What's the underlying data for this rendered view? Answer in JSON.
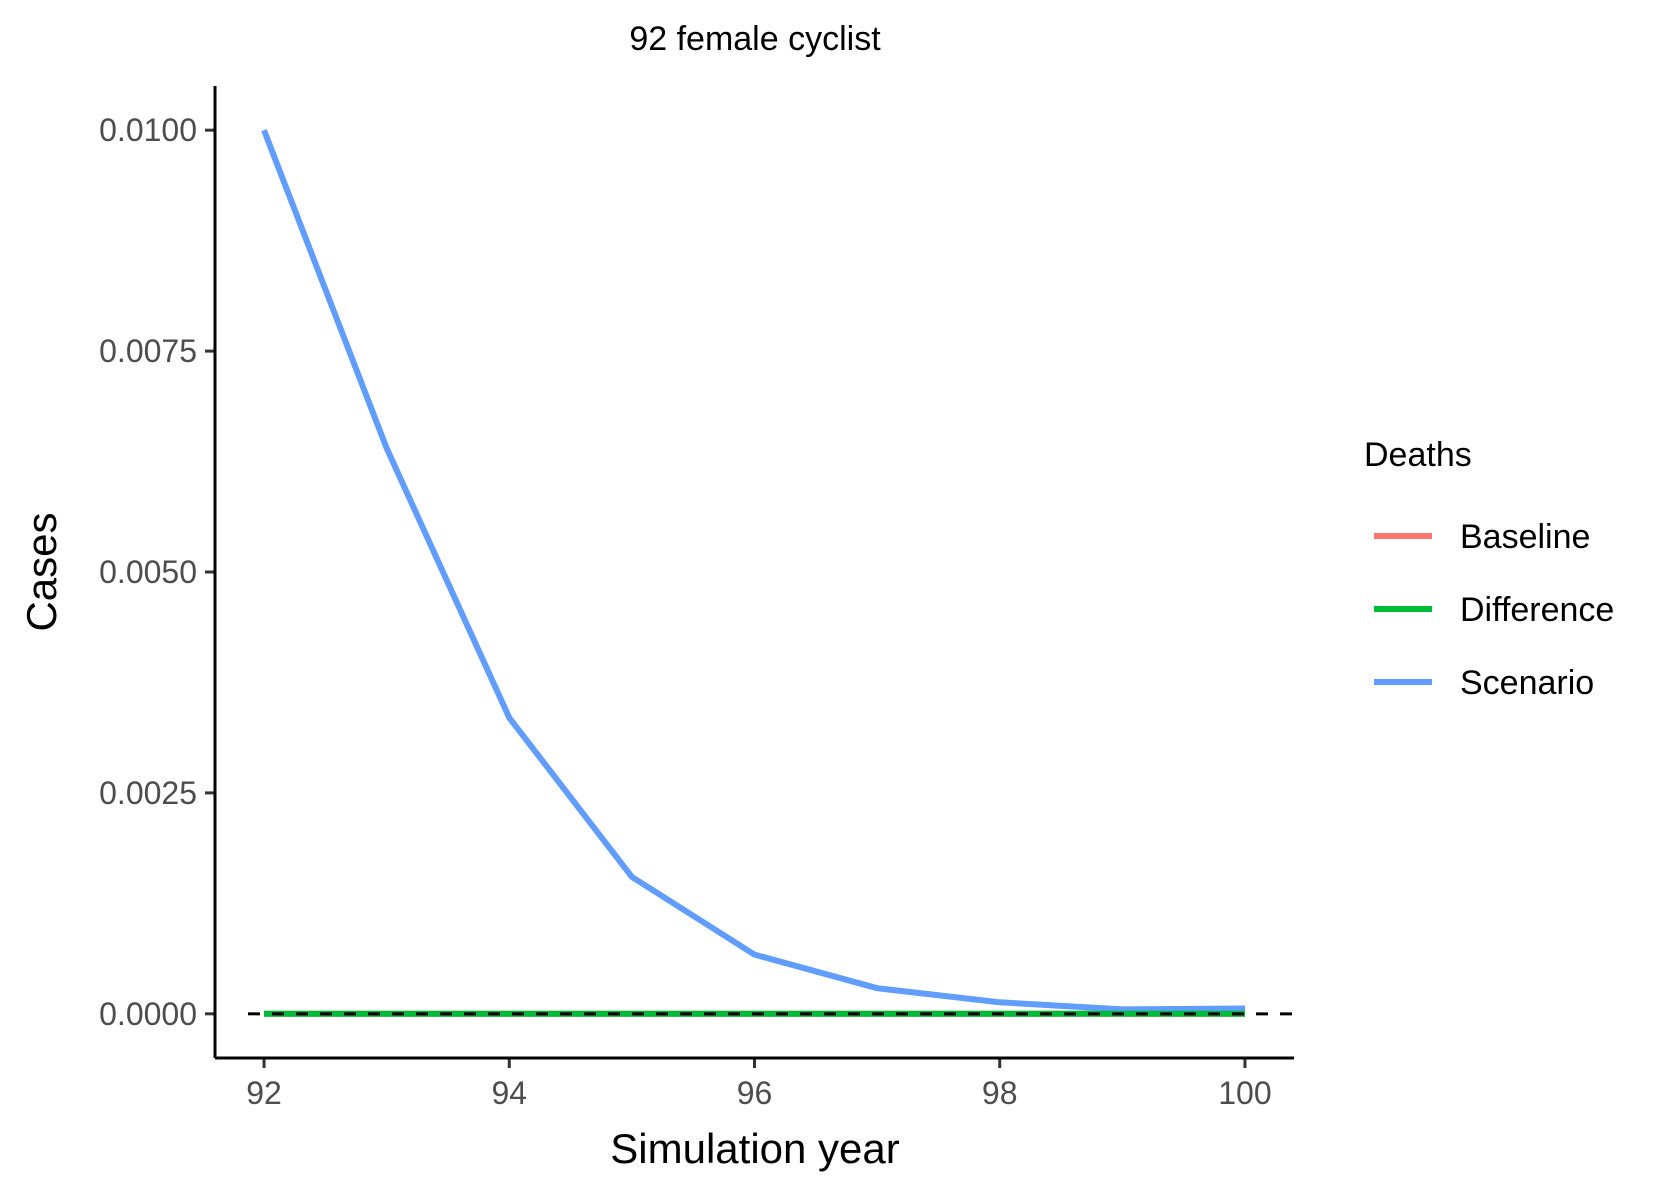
{
  "chart_data": {
    "type": "line",
    "title": "92 female cyclist",
    "xlabel": "Simulation year",
    "ylabel": "Cases",
    "xlim": [
      91.6,
      100.4
    ],
    "ylim": [
      -0.0005,
      0.0105
    ],
    "x_ticks": [
      92,
      94,
      96,
      98,
      100
    ],
    "x_tick_labels": [
      "92",
      "94",
      "96",
      "98",
      "100"
    ],
    "y_ticks": [
      0,
      0.0025,
      0.005,
      0.0075,
      0.01
    ],
    "y_tick_labels": [
      "0.0000",
      "0.0025",
      "0.0050",
      "0.0075",
      "0.0100"
    ],
    "grid": false,
    "reference_line": {
      "y": 0,
      "style": "dashed",
      "color": "#000000"
    },
    "legend": {
      "title": "Deaths",
      "placement": "right",
      "entries": [
        "Baseline",
        "Difference",
        "Scenario"
      ]
    },
    "x": [
      92,
      93,
      94,
      95,
      96,
      97,
      98,
      99,
      100
    ],
    "series": [
      {
        "name": "Baseline",
        "color": "#F8766D",
        "values": [
          0,
          0,
          0,
          0,
          0,
          0,
          0,
          0,
          0
        ]
      },
      {
        "name": "Scenario",
        "color": "#619CFF",
        "values": [
          0.01,
          0.0064,
          0.00335,
          0.00155,
          0.00067,
          0.00029,
          0.00013,
          5e-05,
          6e-05
        ]
      },
      {
        "name": "Difference",
        "color": "#00BA38",
        "values": [
          0,
          0,
          0,
          0,
          0,
          0,
          0,
          0,
          0
        ]
      }
    ]
  }
}
